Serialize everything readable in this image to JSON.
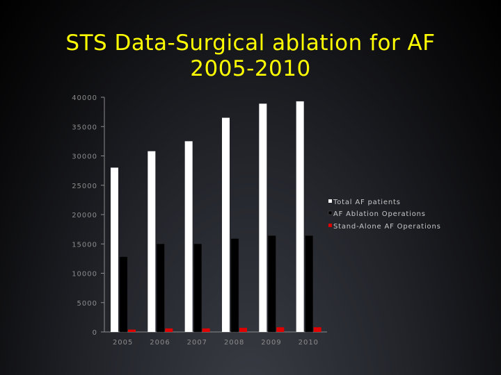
{
  "slide": {
    "title_line1": "STS Data-Surgical ablation for AF",
    "title_line2": "2005-2010"
  },
  "colors": {
    "title": "#ffff00",
    "series": [
      "#ffffff",
      "#000000",
      "#e00000"
    ],
    "axis": "#8c8c8c"
  },
  "chart_data": {
    "type": "bar",
    "title": "",
    "xlabel": "",
    "ylabel": "",
    "categories": [
      "2005",
      "2006",
      "2007",
      "2008",
      "2009",
      "2010"
    ],
    "series": [
      {
        "name": "Total AF patients",
        "values": [
          28000,
          30800,
          32500,
          36500,
          38900,
          39300
        ]
      },
      {
        "name": "AF Ablation Operations",
        "values": [
          12800,
          15000,
          15000,
          15900,
          16400,
          16400
        ]
      },
      {
        "name": "Stand-Alone AF Operations",
        "values": [
          400,
          600,
          600,
          700,
          800,
          800
        ]
      }
    ],
    "ylim": [
      0,
      40000
    ],
    "yticks": [
      0,
      5000,
      10000,
      15000,
      20000,
      25000,
      30000,
      35000,
      40000
    ],
    "ytick_labels": [
      "0",
      "5000",
      "10000",
      "15000",
      "20000",
      "25000",
      "30000",
      "35000",
      "40000"
    ],
    "grid": false,
    "legend": "right"
  }
}
